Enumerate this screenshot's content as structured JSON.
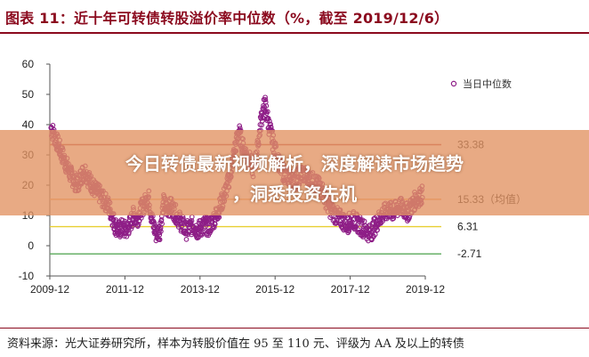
{
  "header": {
    "title": "图表 11：近十年可转债转股溢价率中位数（%，截至 2019/12/6）"
  },
  "banner": {
    "line1": "今日转债最新视频解析，深度解读市场趋势",
    "line2": "，洞悉投资先机"
  },
  "footer": {
    "source": "资料来源：光大证券研究所，样本为转股价值在 95 至 110 元、评级为 AA 及以上的转债"
  },
  "colors": {
    "series": "#8e1e87",
    "line_33": "#c0504d",
    "line_15": "#f0a868",
    "line_6": "#e8cf33",
    "line_neg": "#5aaa5a",
    "axis": "#555555"
  },
  "chart_data": {
    "type": "scatter",
    "ylim": [
      -10,
      60
    ],
    "yticks": [
      "60",
      "50",
      "40",
      "30",
      "20",
      "10",
      "0",
      "-10"
    ],
    "xticks": [
      "2009-12",
      "2011-12",
      "2013-12",
      "2015-12",
      "2017-12",
      "2019-12"
    ],
    "xlim": [
      2009.92,
      2019.92
    ],
    "series": [
      {
        "name": "当日中位数",
        "points": [
          [
            2009.95,
            39
          ],
          [
            2010.05,
            36
          ],
          [
            2010.15,
            33
          ],
          [
            2010.25,
            30
          ],
          [
            2010.35,
            27
          ],
          [
            2010.45,
            24
          ],
          [
            2010.55,
            22
          ],
          [
            2010.65,
            20
          ],
          [
            2010.75,
            23
          ],
          [
            2010.85,
            25
          ],
          [
            2010.95,
            22
          ],
          [
            2011.05,
            20
          ],
          [
            2011.15,
            18
          ],
          [
            2011.25,
            17
          ],
          [
            2011.35,
            15
          ],
          [
            2011.45,
            14
          ],
          [
            2011.55,
            11
          ],
          [
            2011.65,
            7
          ],
          [
            2011.75,
            5
          ],
          [
            2011.85,
            6
          ],
          [
            2011.95,
            5
          ],
          [
            2012.05,
            7
          ],
          [
            2012.15,
            10
          ],
          [
            2012.25,
            9
          ],
          [
            2012.35,
            12
          ],
          [
            2012.45,
            14
          ],
          [
            2012.55,
            16
          ],
          [
            2012.65,
            8
          ],
          [
            2012.75,
            4
          ],
          [
            2012.85,
            5
          ],
          [
            2012.95,
            14
          ],
          [
            2013.05,
            12
          ],
          [
            2013.15,
            13
          ],
          [
            2013.25,
            11
          ],
          [
            2013.35,
            9
          ],
          [
            2013.45,
            7
          ],
          [
            2013.55,
            5
          ],
          [
            2013.65,
            6
          ],
          [
            2013.75,
            7
          ],
          [
            2013.85,
            5
          ],
          [
            2013.95,
            6
          ],
          [
            2014.05,
            7
          ],
          [
            2014.15,
            6
          ],
          [
            2014.25,
            8
          ],
          [
            2014.35,
            10
          ],
          [
            2014.45,
            13
          ],
          [
            2014.55,
            16
          ],
          [
            2014.65,
            20
          ],
          [
            2014.75,
            25
          ],
          [
            2014.85,
            32
          ],
          [
            2014.95,
            38
          ],
          [
            2015.05,
            33
          ],
          [
            2015.15,
            30
          ],
          [
            2015.25,
            28
          ],
          [
            2015.35,
            25
          ],
          [
            2015.45,
            32
          ],
          [
            2015.55,
            42
          ],
          [
            2015.65,
            47
          ],
          [
            2015.75,
            40
          ],
          [
            2015.85,
            35
          ],
          [
            2015.95,
            30
          ],
          [
            2016.05,
            26
          ],
          [
            2016.15,
            24
          ],
          [
            2016.25,
            23
          ],
          [
            2016.35,
            22
          ],
          [
            2016.45,
            21
          ],
          [
            2016.55,
            23
          ],
          [
            2016.65,
            24
          ],
          [
            2016.75,
            23
          ],
          [
            2016.85,
            22
          ],
          [
            2016.95,
            21
          ],
          [
            2017.05,
            20
          ],
          [
            2017.15,
            19
          ],
          [
            2017.25,
            16
          ],
          [
            2017.35,
            13
          ],
          [
            2017.45,
            11
          ],
          [
            2017.55,
            10
          ],
          [
            2017.65,
            9
          ],
          [
            2017.75,
            8
          ],
          [
            2017.85,
            7
          ],
          [
            2017.95,
            9
          ],
          [
            2018.05,
            8
          ],
          [
            2018.15,
            7
          ],
          [
            2018.25,
            6
          ],
          [
            2018.35,
            5
          ],
          [
            2018.45,
            4
          ],
          [
            2018.55,
            6
          ],
          [
            2018.65,
            8
          ],
          [
            2018.75,
            10
          ],
          [
            2018.85,
            11
          ],
          [
            2018.95,
            12
          ],
          [
            2019.05,
            11
          ],
          [
            2019.15,
            12
          ],
          [
            2019.25,
            13
          ],
          [
            2019.35,
            12
          ],
          [
            2019.45,
            11
          ],
          [
            2019.55,
            13
          ],
          [
            2019.65,
            15
          ],
          [
            2019.75,
            16
          ],
          [
            2019.85,
            17
          ]
        ]
      }
    ],
    "reference_lines": [
      {
        "value": 33.38,
        "label": "33.38"
      },
      {
        "value": 15.33,
        "label": "15.33（均值）"
      },
      {
        "value": 6.31,
        "label": "6.31"
      },
      {
        "value": -2.71,
        "label": "-2.71"
      }
    ],
    "legend": {
      "label": "当日中位数",
      "placement": "right"
    }
  }
}
